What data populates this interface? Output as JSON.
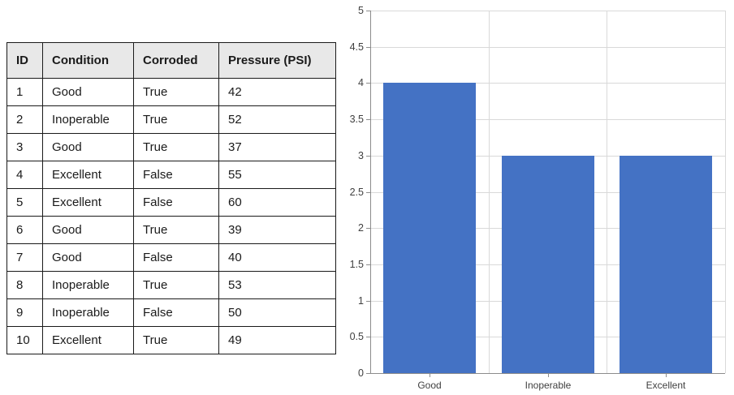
{
  "table": {
    "columns": [
      "ID",
      "Condition",
      "Corroded",
      "Pressure (PSI)"
    ],
    "rows": [
      [
        "1",
        "Good",
        "True",
        "42"
      ],
      [
        "2",
        "Inoperable",
        "True",
        "52"
      ],
      [
        "3",
        "Good",
        "True",
        "37"
      ],
      [
        "4",
        "Excellent",
        "False",
        "55"
      ],
      [
        "5",
        "Excellent",
        "False",
        "60"
      ],
      [
        "6",
        "Good",
        "True",
        "39"
      ],
      [
        "7",
        "Good",
        "False",
        "40"
      ],
      [
        "8",
        "Inoperable",
        "True",
        "53"
      ],
      [
        "9",
        "Inoperable",
        "False",
        "50"
      ],
      [
        "10",
        "Excellent",
        "True",
        "49"
      ]
    ]
  },
  "chart_data": {
    "type": "bar",
    "categories": [
      "Good",
      "Inoperable",
      "Excellent"
    ],
    "values": [
      4,
      3,
      3
    ],
    "title": "",
    "xlabel": "",
    "ylabel": "",
    "ylim": [
      0,
      5
    ],
    "ytick_step": 0.5,
    "grid": true,
    "legend": "none",
    "bar_color": "#4472C4",
    "gridline_color": "#D9D9D9",
    "axis_color": "#8C8C8C",
    "tick_label_color": "#3F3F3F"
  }
}
